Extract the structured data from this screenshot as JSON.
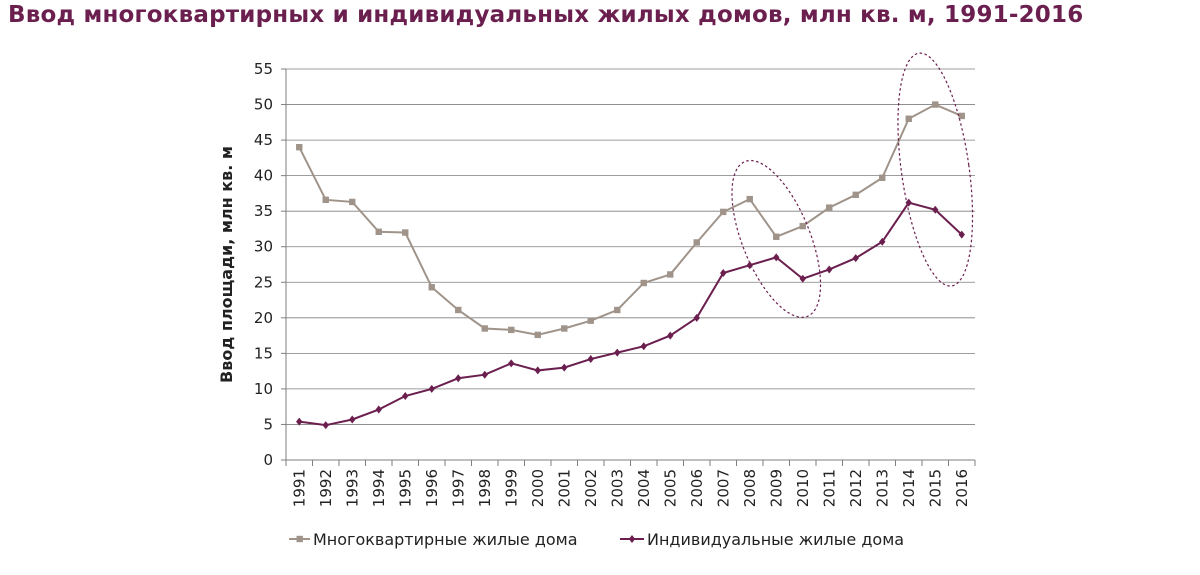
{
  "chart_data": {
    "type": "line",
    "title": "Ввод многоквартирных и индивидуальных жилых домов, млн кв. м, 1991-2016",
    "ylabel": "Ввод площади, млн кв. м",
    "xlabel": "",
    "ylim": [
      0,
      55
    ],
    "yticks": [
      0,
      5,
      10,
      15,
      20,
      25,
      30,
      35,
      40,
      45,
      50,
      55
    ],
    "grid": true,
    "legend_position": "bottom",
    "categories": [
      "1991",
      "1992",
      "1993",
      "1994",
      "1995",
      "1996",
      "1997",
      "1998",
      "1999",
      "2000",
      "2001",
      "2002",
      "2003",
      "2004",
      "2005",
      "2006",
      "2007",
      "2008",
      "2009",
      "2010",
      "2011",
      "2012",
      "2013",
      "2014",
      "2015",
      "2016"
    ],
    "series": [
      {
        "name": "Многоквартирные жилые дома",
        "color": "#a0948a",
        "marker": "square",
        "values": [
          44.0,
          36.6,
          36.3,
          32.1,
          32.0,
          24.3,
          21.1,
          18.5,
          18.3,
          17.6,
          18.5,
          19.6,
          21.1,
          24.9,
          26.1,
          30.6,
          34.9,
          36.7,
          31.4,
          32.9,
          35.5,
          37.3,
          39.7,
          48.0,
          50.0,
          48.4
        ]
      },
      {
        "name": "Индивидуальные жилые дома",
        "color": "#6b1f4f",
        "marker": "diamond",
        "values": [
          5.4,
          4.9,
          5.7,
          7.1,
          9.0,
          10.0,
          11.5,
          12.0,
          13.6,
          12.6,
          13.0,
          14.2,
          15.1,
          16.0,
          17.5,
          20.0,
          26.3,
          27.4,
          28.5,
          25.5,
          26.8,
          28.4,
          30.7,
          36.2,
          35.2,
          31.7
        ]
      }
    ],
    "annotations": [
      {
        "type": "ellipse",
        "label": "",
        "years": [
          "2008",
          "2010"
        ],
        "color": "#6b1f4f"
      },
      {
        "type": "ellipse",
        "label": "",
        "years": [
          "2014",
          "2016"
        ],
        "color": "#6b1f4f"
      }
    ]
  }
}
